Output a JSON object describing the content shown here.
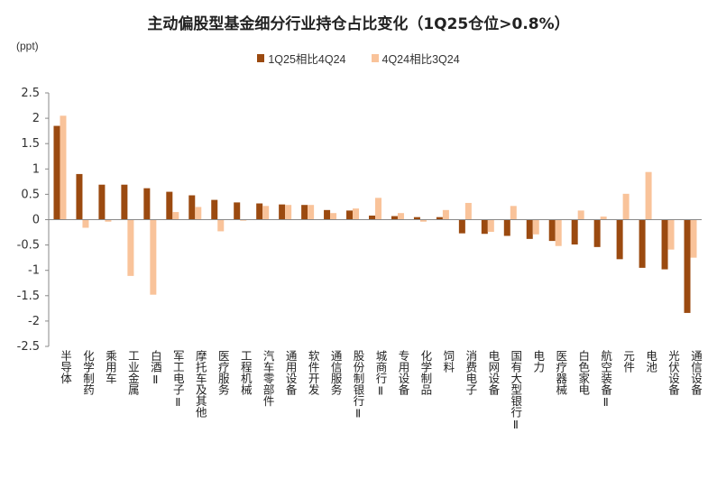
{
  "chart_data": {
    "type": "bar",
    "title": "主动偏股型基金细分行业持仓占比变化（1Q25仓位>0.8%）",
    "ylabel": "(ppt)",
    "ylim": [
      -2.5,
      2.5
    ],
    "yticks": [
      "2.5",
      "2",
      "1.5",
      "1",
      "0.5",
      "0",
      "-0.5",
      "-1",
      "-1.5",
      "-2",
      "-2.5"
    ],
    "grid": false,
    "legend_position": "top",
    "categories": [
      "半导体",
      "化学制药",
      "乘用车",
      "工业金属",
      "白酒Ⅱ",
      "军工电子Ⅱ",
      "摩托车及其他",
      "医疗服务",
      "工程机械",
      "汽车零部件",
      "通用设备",
      "软件开发",
      "通信服务",
      "股份制银行Ⅱ",
      "城商行Ⅱ",
      "专用设备",
      "化学制品",
      "饲料",
      "消费电子",
      "电网设备",
      "国有大型银行Ⅱ",
      "电力",
      "医疗器械",
      "白色家电",
      "航空装备Ⅱ",
      "元件",
      "电池",
      "光伏设备",
      "通信设备"
    ],
    "series": [
      {
        "name": "1Q25相比4Q24",
        "color": "#9B4A10",
        "values": [
          1.85,
          0.9,
          0.69,
          0.69,
          0.62,
          0.55,
          0.48,
          0.39,
          0.34,
          0.32,
          0.3,
          0.29,
          0.19,
          0.18,
          0.08,
          0.07,
          0.05,
          0.05,
          -0.27,
          -0.28,
          -0.32,
          -0.38,
          -0.42,
          -0.49,
          -0.54,
          -0.78,
          -0.95,
          -0.98,
          -1.84
        ]
      },
      {
        "name": "4Q24相比3Q24",
        "color": "#F9C39A",
        "values": [
          2.05,
          -0.16,
          -0.04,
          -1.11,
          -1.48,
          0.15,
          0.25,
          -0.23,
          -0.02,
          0.27,
          0.29,
          0.29,
          0.13,
          0.22,
          0.43,
          0.13,
          -0.04,
          0.19,
          0.33,
          -0.24,
          0.27,
          -0.29,
          -0.52,
          0.18,
          0.06,
          0.51,
          0.94,
          -0.59,
          -0.75
        ]
      }
    ]
  }
}
